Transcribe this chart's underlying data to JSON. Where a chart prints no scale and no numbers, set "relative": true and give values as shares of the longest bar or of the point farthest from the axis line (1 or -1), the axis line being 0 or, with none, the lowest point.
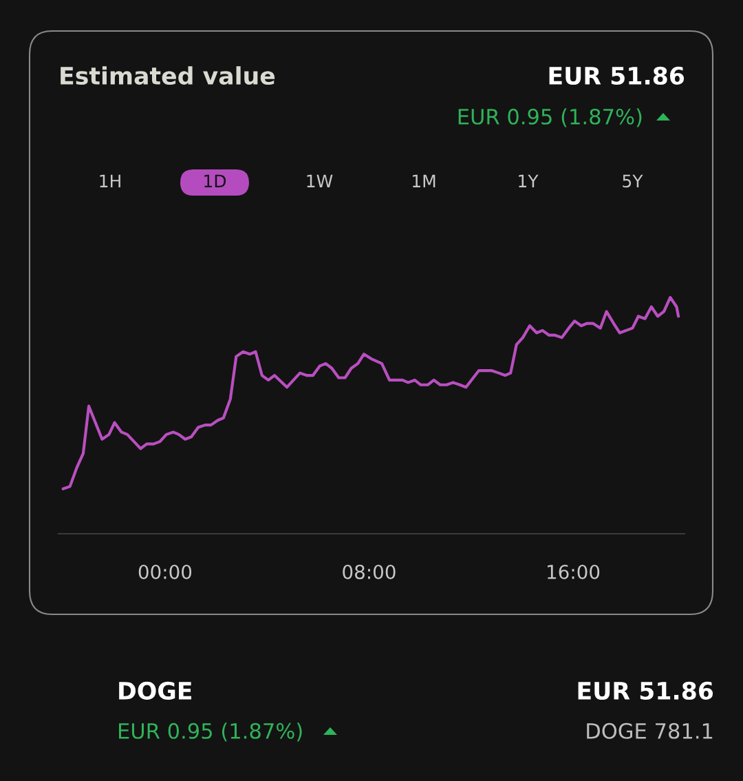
{
  "chart_data": {
    "type": "line",
    "title": "Estimated value",
    "annotations": [
      "EUR 51.86",
      "EUR 0.95 (1.87%)",
      "1H",
      "1D",
      "1W",
      "1M",
      "1Y",
      "5Y",
      "DOGE",
      "EUR 0.95 (1.87%)",
      "EUR 51.86",
      "DOGE 781.1"
    ],
    "relative": true,
    "grid": false,
    "xlim": [
      -4.18,
      20.37
    ],
    "xticks": [
      {
        "value": 0,
        "label": "00:00"
      },
      {
        "value": 8,
        "label": "08:00"
      },
      {
        "value": 16,
        "label": "16:00"
      }
    ],
    "series": [
      {
        "color": "#b94fc0",
        "x": [
          -4.0,
          -3.73,
          -3.46,
          -3.21,
          -2.99,
          -2.47,
          -2.2,
          -1.98,
          -1.71,
          -1.48,
          -0.96,
          -0.72,
          -0.45,
          -0.2,
          0.05,
          0.32,
          0.54,
          0.79,
          1.03,
          1.3,
          1.57,
          1.8,
          2.07,
          2.29,
          2.56,
          2.79,
          3.06,
          3.33,
          3.55,
          3.8,
          4.05,
          4.29,
          4.78,
          5.29,
          5.55,
          5.8,
          6.07,
          6.3,
          6.54,
          6.81,
          7.06,
          7.3,
          7.56,
          7.8,
          8.09,
          8.5,
          8.8,
          9.04,
          9.31,
          9.53,
          9.79,
          10.03,
          10.3,
          10.54,
          10.79,
          11.04,
          11.29,
          11.56,
          11.8,
          12.3,
          12.55,
          12.82,
          13.09,
          13.33,
          13.55,
          13.78,
          14.03,
          14.3,
          14.57,
          14.8,
          15.06,
          15.29,
          15.56,
          15.83,
          16.06,
          16.32,
          16.55,
          16.78,
          17.07,
          17.31,
          17.59,
          17.83,
          18.08,
          18.33,
          18.56,
          18.82,
          19.07,
          19.32,
          19.56,
          19.81,
          20.06,
          20.13
        ],
        "values": [
          0.19,
          0.2,
          0.28,
          0.34,
          0.54,
          0.4,
          0.42,
          0.47,
          0.43,
          0.42,
          0.36,
          0.38,
          0.38,
          0.39,
          0.42,
          0.43,
          0.42,
          0.4,
          0.41,
          0.45,
          0.46,
          0.46,
          0.48,
          0.49,
          0.57,
          0.75,
          0.77,
          0.76,
          0.77,
          0.67,
          0.65,
          0.67,
          0.62,
          0.68,
          0.67,
          0.67,
          0.71,
          0.72,
          0.7,
          0.66,
          0.66,
          0.7,
          0.72,
          0.76,
          0.74,
          0.72,
          0.65,
          0.65,
          0.65,
          0.64,
          0.65,
          0.63,
          0.63,
          0.65,
          0.63,
          0.63,
          0.64,
          0.63,
          0.62,
          0.69,
          0.69,
          0.69,
          0.68,
          0.67,
          0.68,
          0.8,
          0.83,
          0.88,
          0.85,
          0.86,
          0.84,
          0.84,
          0.83,
          0.87,
          0.9,
          0.88,
          0.89,
          0.89,
          0.87,
          0.94,
          0.89,
          0.85,
          0.86,
          0.87,
          0.92,
          0.91,
          0.96,
          0.92,
          0.94,
          1.0,
          0.96,
          0.92
        ]
      }
    ]
  }
}
